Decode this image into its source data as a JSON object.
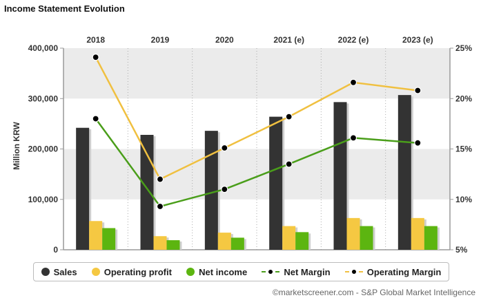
{
  "title": "Income Statement Evolution",
  "credit": "©marketscreener.com - S&P Global Market Intelligence",
  "chart_data": {
    "type": "bar",
    "title": "Income Statement Evolution",
    "ylabel": "Million KRW",
    "categories": [
      "2018",
      "2019",
      "2020",
      "2021 (e)",
      "2022 (e)",
      "2023 (e)"
    ],
    "ylim": [
      0,
      400000
    ],
    "y_ticks": [
      "0",
      "100,000",
      "200,000",
      "300,000",
      "400,000"
    ],
    "y2lim": [
      5,
      25
    ],
    "y2_ticks": [
      "5%",
      "10%",
      "15%",
      "20%",
      "25%"
    ],
    "series": [
      {
        "name": "Sales",
        "kind": "bar",
        "axis": "left",
        "color": "#333333",
        "values": [
          242000,
          228000,
          236000,
          264000,
          293000,
          307000
        ]
      },
      {
        "name": "Operating profit",
        "kind": "bar",
        "axis": "left",
        "color": "#f5c842",
        "values": [
          57000,
          27000,
          34000,
          47000,
          63000,
          63000
        ]
      },
      {
        "name": "Net income",
        "kind": "bar",
        "axis": "left",
        "color": "#5cb510",
        "values": [
          43000,
          19000,
          24000,
          35000,
          47000,
          47000
        ]
      },
      {
        "name": "Net Margin",
        "kind": "line",
        "axis": "right",
        "color": "#4a9e1a",
        "values": [
          18.0,
          9.3,
          11.0,
          13.5,
          16.1,
          15.6
        ]
      },
      {
        "name": "Operating Margin",
        "kind": "line",
        "axis": "right",
        "color": "#f0c040",
        "values": [
          24.1,
          12.0,
          15.1,
          18.2,
          21.6,
          20.8
        ]
      }
    ],
    "grid": true,
    "legend_position": "bottom"
  }
}
